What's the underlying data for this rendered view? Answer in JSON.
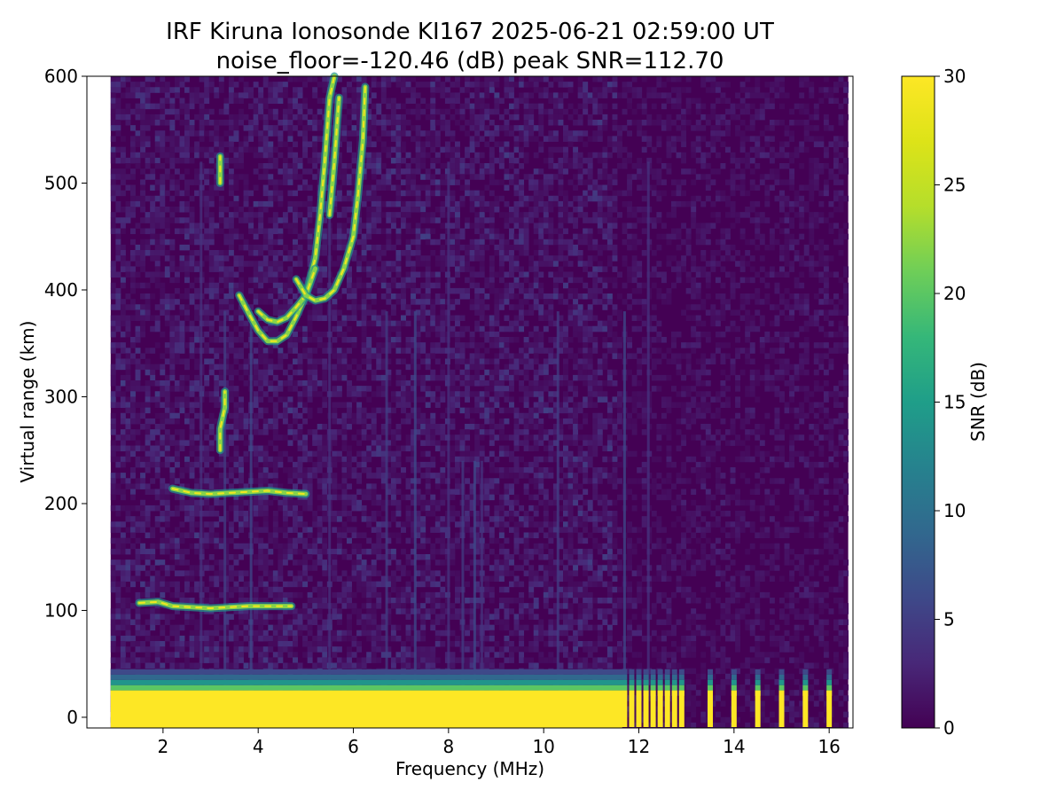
{
  "chart_data": {
    "type": "heatmap",
    "title_line1": "IRF Kiruna Ionosonde KI167 2025-06-21 02:59:00  UT",
    "title_line2": "noise_floor=-120.46 (dB) peak SNR=112.70",
    "xlabel": "Frequency (MHz)",
    "ylabel": "Virtual range (km)",
    "xlim": [
      0.4,
      16.5
    ],
    "ylim": [
      -10,
      600
    ],
    "x_ticks": [
      2,
      4,
      6,
      8,
      10,
      12,
      14,
      16
    ],
    "y_ticks": [
      0,
      100,
      200,
      300,
      400,
      500,
      600
    ],
    "colorbar": {
      "label": "SNR (dB)",
      "range": [
        0,
        30
      ],
      "ticks": [
        0,
        5,
        10,
        15,
        20,
        25,
        30
      ],
      "colormap": "viridis"
    },
    "data_freq_range": [
      0.9,
      16.4
    ],
    "ground_clutter": {
      "saturated_below_km": 25,
      "continuous_until_mhz": 11.65,
      "discrete_channels_mhz": [
        11.7,
        11.85,
        12.0,
        12.15,
        12.3,
        12.45,
        12.6,
        12.75,
        12.9,
        13.5,
        14.0,
        14.5,
        15.0,
        15.5,
        16.0
      ]
    },
    "traces": [
      {
        "label": "E layer echo",
        "points": [
          [
            1.5,
            107
          ],
          [
            1.9,
            108
          ],
          [
            2.2,
            104
          ],
          [
            2.6,
            103
          ],
          [
            3.0,
            102
          ],
          [
            3.4,
            103
          ],
          [
            3.8,
            104
          ],
          [
            4.2,
            104
          ],
          [
            4.7,
            104
          ]
        ]
      },
      {
        "label": "Es layer echo",
        "points": [
          [
            2.2,
            214
          ],
          [
            2.6,
            210
          ],
          [
            3.0,
            209
          ],
          [
            3.4,
            210
          ],
          [
            3.8,
            211
          ],
          [
            4.2,
            212
          ],
          [
            4.6,
            210
          ],
          [
            5.0,
            209
          ]
        ]
      },
      {
        "label": "F layer O-mode",
        "points": [
          [
            3.6,
            395
          ],
          [
            3.8,
            378
          ],
          [
            4.0,
            362
          ],
          [
            4.2,
            352
          ],
          [
            4.4,
            352
          ],
          [
            4.6,
            358
          ],
          [
            4.8,
            375
          ],
          [
            5.0,
            395
          ],
          [
            5.2,
            430
          ],
          [
            5.3,
            470
          ],
          [
            5.4,
            520
          ],
          [
            5.5,
            580
          ],
          [
            5.6,
            600
          ]
        ]
      },
      {
        "label": "F layer inner trace",
        "points": [
          [
            4.0,
            380
          ],
          [
            4.2,
            372
          ],
          [
            4.4,
            370
          ],
          [
            4.6,
            374
          ],
          [
            4.8,
            384
          ],
          [
            5.0,
            395
          ],
          [
            5.2,
            420
          ]
        ]
      },
      {
        "label": "F layer X-mode",
        "points": [
          [
            4.8,
            410
          ],
          [
            5.0,
            395
          ],
          [
            5.2,
            390
          ],
          [
            5.4,
            392
          ],
          [
            5.6,
            400
          ],
          [
            5.8,
            420
          ],
          [
            6.0,
            450
          ],
          [
            6.1,
            490
          ],
          [
            6.2,
            540
          ],
          [
            6.25,
            590
          ]
        ]
      },
      {
        "label": "faint upper trace",
        "points": [
          [
            5.5,
            470
          ],
          [
            5.6,
            520
          ],
          [
            5.7,
            580
          ]
        ]
      },
      {
        "label": "patch 3.2 MHz high",
        "points": [
          [
            3.2,
            500
          ],
          [
            3.2,
            525
          ]
        ]
      },
      {
        "label": "patch 3.2 MHz mid",
        "points": [
          [
            3.2,
            250
          ],
          [
            3.2,
            270
          ],
          [
            3.3,
            290
          ],
          [
            3.3,
            305
          ]
        ]
      }
    ],
    "interference_lines_mhz": [
      2.8,
      3.3,
      3.85,
      5.5,
      6.7,
      7.3,
      8.0,
      8.3,
      8.55,
      8.7,
      10.3,
      11.7,
      12.2
    ]
  }
}
